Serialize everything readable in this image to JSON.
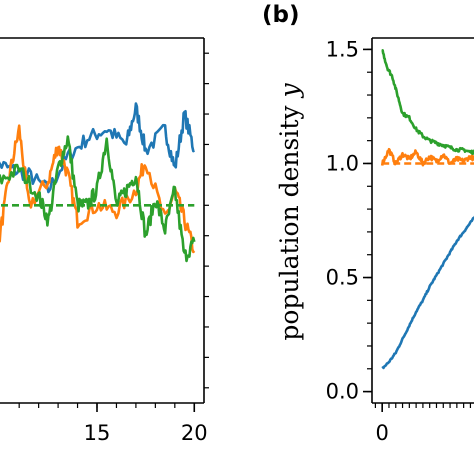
{
  "colors": {
    "blue": "#1f77b4",
    "orange": "#ff7f0e",
    "green": "#2ca02c",
    "axis": "#000000"
  },
  "chart_data": [
    {
      "type": "line",
      "panel": "left (cropped)",
      "title": "",
      "xlabel": "",
      "ylabel": "",
      "xlim": [
        9.5,
        20.5
      ],
      "ylim": [
        0.35,
        1.55
      ],
      "xticks": [
        15,
        20
      ],
      "xtick_labels": [
        "15",
        "20"
      ],
      "ylim_note": "y tick labels cropped out of view",
      "series": [
        {
          "color": "blue",
          "style": "solid",
          "x": [
            9.5,
            10.5,
            11.5,
            12.5,
            13.5,
            14.5,
            15.5,
            16.5,
            17.0,
            17.5,
            18.5,
            19.0,
            19.5,
            20.0
          ],
          "y": [
            1.15,
            1.12,
            1.1,
            1.05,
            1.16,
            1.22,
            1.25,
            1.2,
            1.32,
            1.18,
            1.25,
            1.12,
            1.3,
            1.18
          ]
        },
        {
          "color": "orange",
          "style": "solid",
          "x": [
            9.5,
            10.0,
            10.5,
            11.0,
            11.5,
            12.5,
            13.0,
            13.5,
            14.0,
            15.0,
            16.0,
            17.0,
            17.5,
            18.5,
            19.0,
            19.5,
            20.0
          ],
          "y": [
            0.98,
            0.9,
            1.1,
            1.25,
            1.0,
            1.08,
            1.2,
            1.1,
            0.95,
            1.0,
            0.98,
            1.05,
            1.15,
            0.95,
            1.05,
            0.95,
            0.85
          ]
        },
        {
          "color": "green",
          "style": "solid",
          "x": [
            9.5,
            10.0,
            11.0,
            12.0,
            12.5,
            13.0,
            13.5,
            14.0,
            14.5,
            15.0,
            15.5,
            16.0,
            16.5,
            17.0,
            17.5,
            18.0,
            18.5,
            19.0,
            19.5,
            20.0
          ],
          "y": [
            1.05,
            1.08,
            1.12,
            1.03,
            0.95,
            1.12,
            1.22,
            1.0,
            1.0,
            1.05,
            1.22,
            1.0,
            1.05,
            1.1,
            0.9,
            1.02,
            0.92,
            1.05,
            0.83,
            0.88
          ]
        },
        {
          "color": "green",
          "style": "dashed",
          "x": [
            9.5,
            20.0
          ],
          "y": [
            1.0,
            1.0
          ]
        }
      ]
    },
    {
      "type": "line",
      "panel_label": "(b)",
      "title": "",
      "xlabel": "",
      "ylabel": "population density y",
      "ylabel_text": "population density ",
      "ylabel_var": "y",
      "xlim": [
        -0.3,
        3.0
      ],
      "ylim": [
        -0.05,
        1.55
      ],
      "xticks": [
        0
      ],
      "xtick_labels": [
        "0"
      ],
      "yticks": [
        0.0,
        0.5,
        1.0,
        1.5
      ],
      "ytick_labels": [
        "0.0",
        "0.5",
        "1.0",
        "1.5"
      ],
      "series": [
        {
          "color": "blue",
          "style": "solid",
          "x": [
            0.0,
            0.2,
            0.4,
            0.6,
            0.8,
            1.0,
            1.2,
            1.4,
            1.6,
            1.8,
            2.0,
            2.2,
            2.4,
            2.6,
            2.8
          ],
          "y": [
            0.1,
            0.13,
            0.17,
            0.23,
            0.29,
            0.35,
            0.4,
            0.46,
            0.51,
            0.56,
            0.61,
            0.66,
            0.7,
            0.74,
            0.78
          ]
        },
        {
          "color": "orange",
          "style": "solid",
          "x": [
            0.0,
            0.2,
            0.4,
            0.6,
            0.8,
            1.0,
            1.2,
            1.4,
            1.6,
            1.8,
            2.0,
            2.2,
            2.4,
            2.6,
            2.8
          ],
          "y": [
            1.0,
            1.06,
            1.0,
            1.04,
            1.02,
            1.05,
            1.0,
            1.03,
            1.01,
            1.04,
            1.0,
            1.02,
            1.01,
            1.03,
            1.01
          ]
        },
        {
          "color": "green",
          "style": "solid",
          "x": [
            0.0,
            0.15,
            0.3,
            0.45,
            0.6,
            0.8,
            1.0,
            1.2,
            1.4,
            1.6,
            1.8,
            2.0,
            2.2,
            2.4,
            2.6,
            2.8
          ],
          "y": [
            1.5,
            1.42,
            1.38,
            1.3,
            1.22,
            1.2,
            1.15,
            1.12,
            1.1,
            1.09,
            1.08,
            1.07,
            1.06,
            1.06,
            1.05,
            1.05
          ]
        },
        {
          "color": "orange",
          "style": "dashed",
          "x": [
            0.0,
            2.8
          ],
          "y": [
            1.0,
            1.0
          ]
        }
      ]
    }
  ]
}
